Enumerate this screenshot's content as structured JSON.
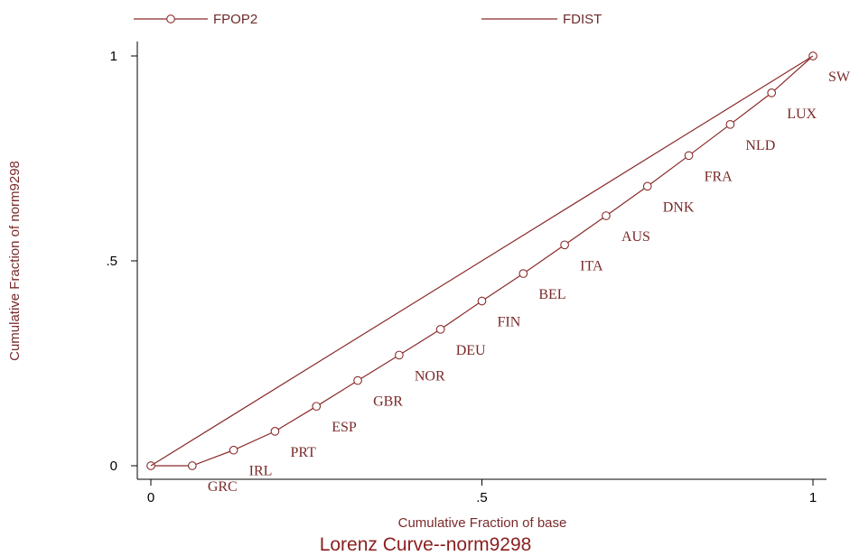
{
  "chart_data": {
    "type": "line",
    "title": "Lorenz Curve--norm9298",
    "xlabel": "Cumulative Fraction of base",
    "ylabel": "Cumulative Fraction of norm9298",
    "xlim": [
      0,
      1
    ],
    "ylim": [
      0,
      1
    ],
    "xticks": [
      0,
      0.5,
      1
    ],
    "xtick_labels": [
      "0",
      ".5",
      "1"
    ],
    "yticks": [
      0,
      0.5,
      1
    ],
    "ytick_labels": [
      "0",
      ".5",
      "1"
    ],
    "grid": false,
    "legend_position": "top",
    "series": [
      {
        "name": "FPOP2",
        "marker": "circle",
        "x": [
          0,
          0.0625,
          0.125,
          0.1875,
          0.25,
          0.3125,
          0.375,
          0.4375,
          0.5,
          0.5625,
          0.625,
          0.6875,
          0.75,
          0.8125,
          0.875,
          0.9375,
          1
        ],
        "y": [
          0,
          0,
          0.038,
          0.084,
          0.145,
          0.208,
          0.27,
          0.333,
          0.402,
          0.469,
          0.539,
          0.61,
          0.682,
          0.757,
          0.833,
          0.91,
          1
        ],
        "labels": [
          "",
          "GRC",
          "IRL",
          "PRT",
          "ESP",
          "GBR",
          "NOR",
          "DEU",
          "FIN",
          "BEL",
          "ITA",
          "AUS",
          "DNK",
          "FRA",
          "NLD",
          "LUX",
          "SWE"
        ]
      },
      {
        "name": "FDIST",
        "marker": "none",
        "x": [
          0,
          1
        ],
        "y": [
          0,
          1
        ]
      }
    ],
    "colors": {
      "line": "#8a2a2a",
      "text": "#7a2a2a",
      "axis": "#000000"
    }
  }
}
